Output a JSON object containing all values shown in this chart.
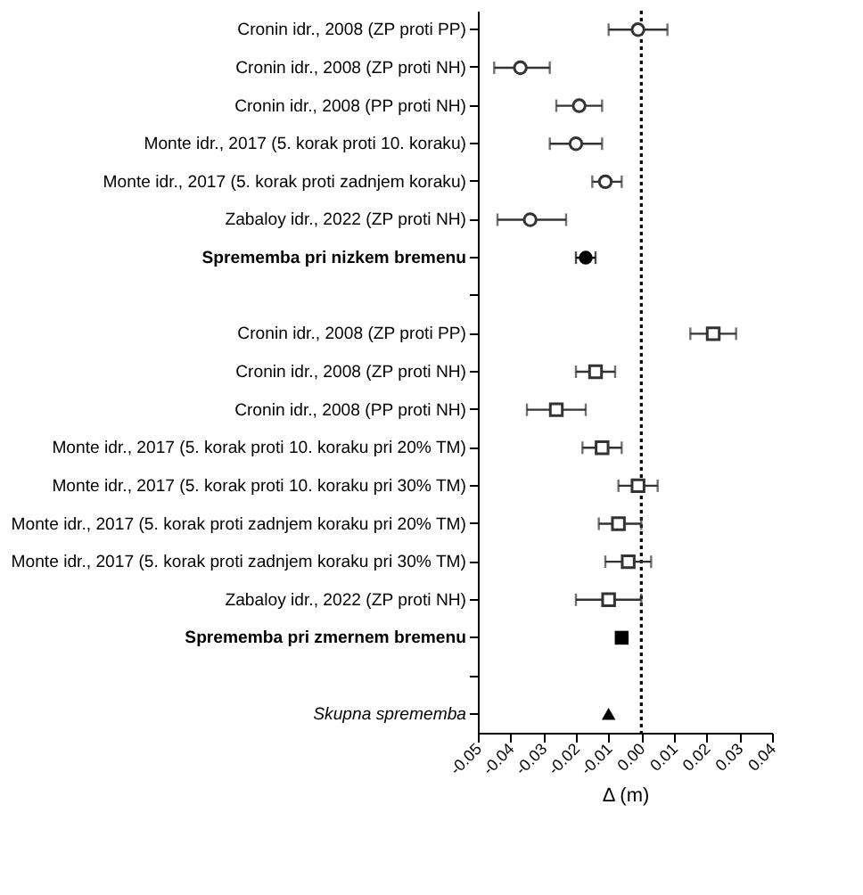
{
  "chart_data": {
    "type": "scatter",
    "orientation": "horizontal",
    "categories": [
      "Cronin idr., 2008 (ZP proti PP)",
      "Cronin idr., 2008 (ZP proti NH)",
      "Cronin idr., 2008 (PP proti NH)",
      "Monte idr., 2017 (5. korak proti 10. koraku)",
      "Monte idr., 2017 (5. korak proti zadnjem koraku)",
      "Zabaloy idr., 2022 (ZP proti NH)",
      "Sprememba pri nizkem bremenu",
      null,
      "Cronin idr., 2008 (ZP proti PP)",
      "Cronin idr., 2008 (ZP proti NH)",
      "Cronin idr., 2008 (PP proti NH)",
      "Monte idr., 2017 (5. korak proti 10. koraku pri 20% TM)",
      "Monte idr., 2017 (5. korak proti 10. koraku pri 30% TM)",
      "Monte idr., 2017 (5. korak proti zadnjem koraku pri 20% TM)",
      "Monte idr., 2017 (5. korak proti zadnjem koraku pri 30% TM)",
      "Zabaloy idr., 2022 (ZP proti NH)",
      "Sprememba pri zmernem bremenu",
      null,
      "Skupna sprememba"
    ],
    "series": [
      {
        "color": "#333333",
        "marker": "circle",
        "values": [
          -0.001,
          -0.037,
          -0.019,
          -0.02,
          -0.011,
          -0.034,
          null,
          null,
          null,
          null,
          null,
          null,
          null,
          null,
          null,
          null,
          null,
          null,
          null
        ],
        "errors": [
          [
            -0.01,
            0.008
          ],
          [
            -0.045,
            -0.028
          ],
          [
            -0.026,
            -0.012
          ],
          [
            -0.028,
            -0.012
          ],
          [
            -0.015,
            -0.006
          ],
          [
            -0.044,
            -0.023
          ],
          null,
          null,
          null,
          null,
          null,
          null,
          null,
          null,
          null,
          null,
          null,
          null,
          null
        ]
      },
      {
        "color": "#000000",
        "marker": "circle",
        "values": [
          null,
          null,
          null,
          null,
          null,
          null,
          -0.017,
          null,
          null,
          null,
          null,
          null,
          null,
          null,
          null,
          null,
          null,
          null,
          null
        ],
        "errors": [
          null,
          null,
          null,
          null,
          null,
          null,
          [
            -0.02,
            -0.014
          ],
          null,
          null,
          null,
          null,
          null,
          null,
          null,
          null,
          null,
          null,
          null,
          null
        ]
      },
      {
        "color": "#333333",
        "marker": "square",
        "values": [
          null,
          null,
          null,
          null,
          null,
          null,
          null,
          null,
          0.022,
          -0.014,
          -0.026,
          -0.012,
          -0.001,
          -0.007,
          -0.004,
          -0.01,
          null,
          null,
          null
        ],
        "errors": [
          null,
          null,
          null,
          null,
          null,
          null,
          null,
          null,
          [
            0.015,
            0.029
          ],
          [
            -0.02,
            -0.008
          ],
          [
            -0.035,
            -0.017
          ],
          [
            -0.018,
            -0.006
          ],
          [
            -0.007,
            0.005
          ],
          [
            -0.013,
            0.0
          ],
          [
            -0.011,
            0.003
          ],
          [
            -0.02,
            0.0
          ],
          null,
          null,
          null
        ]
      },
      {
        "color": "#000000",
        "marker": "square",
        "values": [
          null,
          null,
          null,
          null,
          null,
          null,
          null,
          null,
          null,
          null,
          null,
          null,
          null,
          null,
          null,
          null,
          -0.006,
          null,
          null
        ]
      },
      {
        "color": "#000000",
        "marker": "triangle",
        "values": [
          null,
          null,
          null,
          null,
          null,
          null,
          null,
          null,
          null,
          null,
          null,
          null,
          null,
          null,
          null,
          null,
          null,
          null,
          -0.01
        ]
      }
    ],
    "xlim": [
      -0.05,
      0.04
    ],
    "xticks": [
      -0.05,
      -0.04,
      -0.03,
      -0.02,
      -0.01,
      {
        "value": 0,
        "label": "0.00"
      },
      0.01,
      0.02,
      0.03,
      0.04
    ],
    "xlabel": "Δ (m)",
    "ref_lines": [
      {
        "axis": "x",
        "value": 0,
        "line_style": "dotted",
        "color": "#000000"
      }
    ],
    "grid": false
  }
}
